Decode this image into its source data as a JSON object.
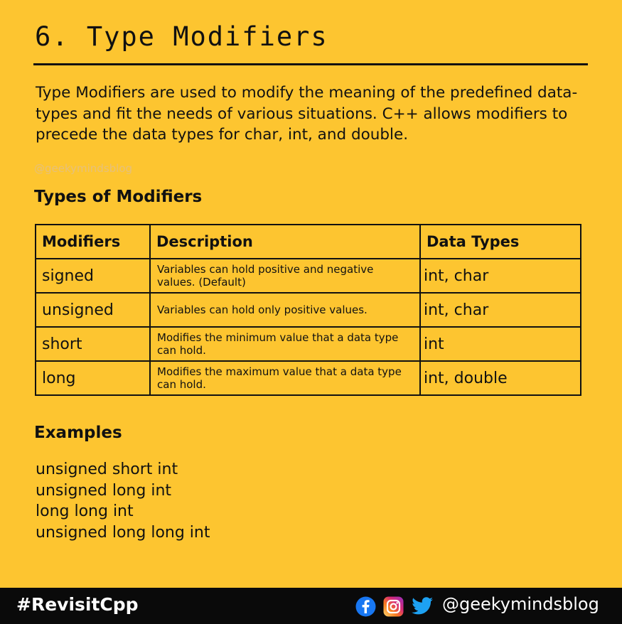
{
  "title": "6. Type Modifiers",
  "intro": "Type Modifiers are used to modify the meaning of the predefined data-types and fit the needs of various situations. C++ allows modifiers to precede the data types for char, int, and double.",
  "watermark": "@geekymindsblog",
  "types_heading": "Types of Modifiers",
  "table": {
    "headers": [
      "Modifiers",
      "Description",
      "Data Types"
    ],
    "rows": [
      {
        "modifier": "signed",
        "description": "Variables can hold positive and negative values. (Default)",
        "data_types": "int, char"
      },
      {
        "modifier": "unsigned",
        "description": "Variables can hold only positive values.",
        "data_types": "int, char"
      },
      {
        "modifier": "short",
        "description": "Modifies the minimum value that a data type can hold.",
        "data_types": "int"
      },
      {
        "modifier": "long",
        "description": "Modifies the maximum value that a data type can hold.",
        "data_types": "int, double"
      }
    ]
  },
  "examples_heading": "Examples",
  "examples": [
    "unsigned short int",
    "unsigned long int",
    "long long int",
    "unsigned long long int"
  ],
  "footer": {
    "hashtag": "#RevisitCpp",
    "handle": "@geekymindsblog",
    "icons": [
      "facebook-icon",
      "instagram-icon",
      "twitter-icon"
    ]
  },
  "colors": {
    "background": "#FDC530",
    "text": "#111111",
    "footer_bg": "#0A0A0A",
    "facebook": "#1877F2",
    "twitter": "#1DA1F2"
  }
}
